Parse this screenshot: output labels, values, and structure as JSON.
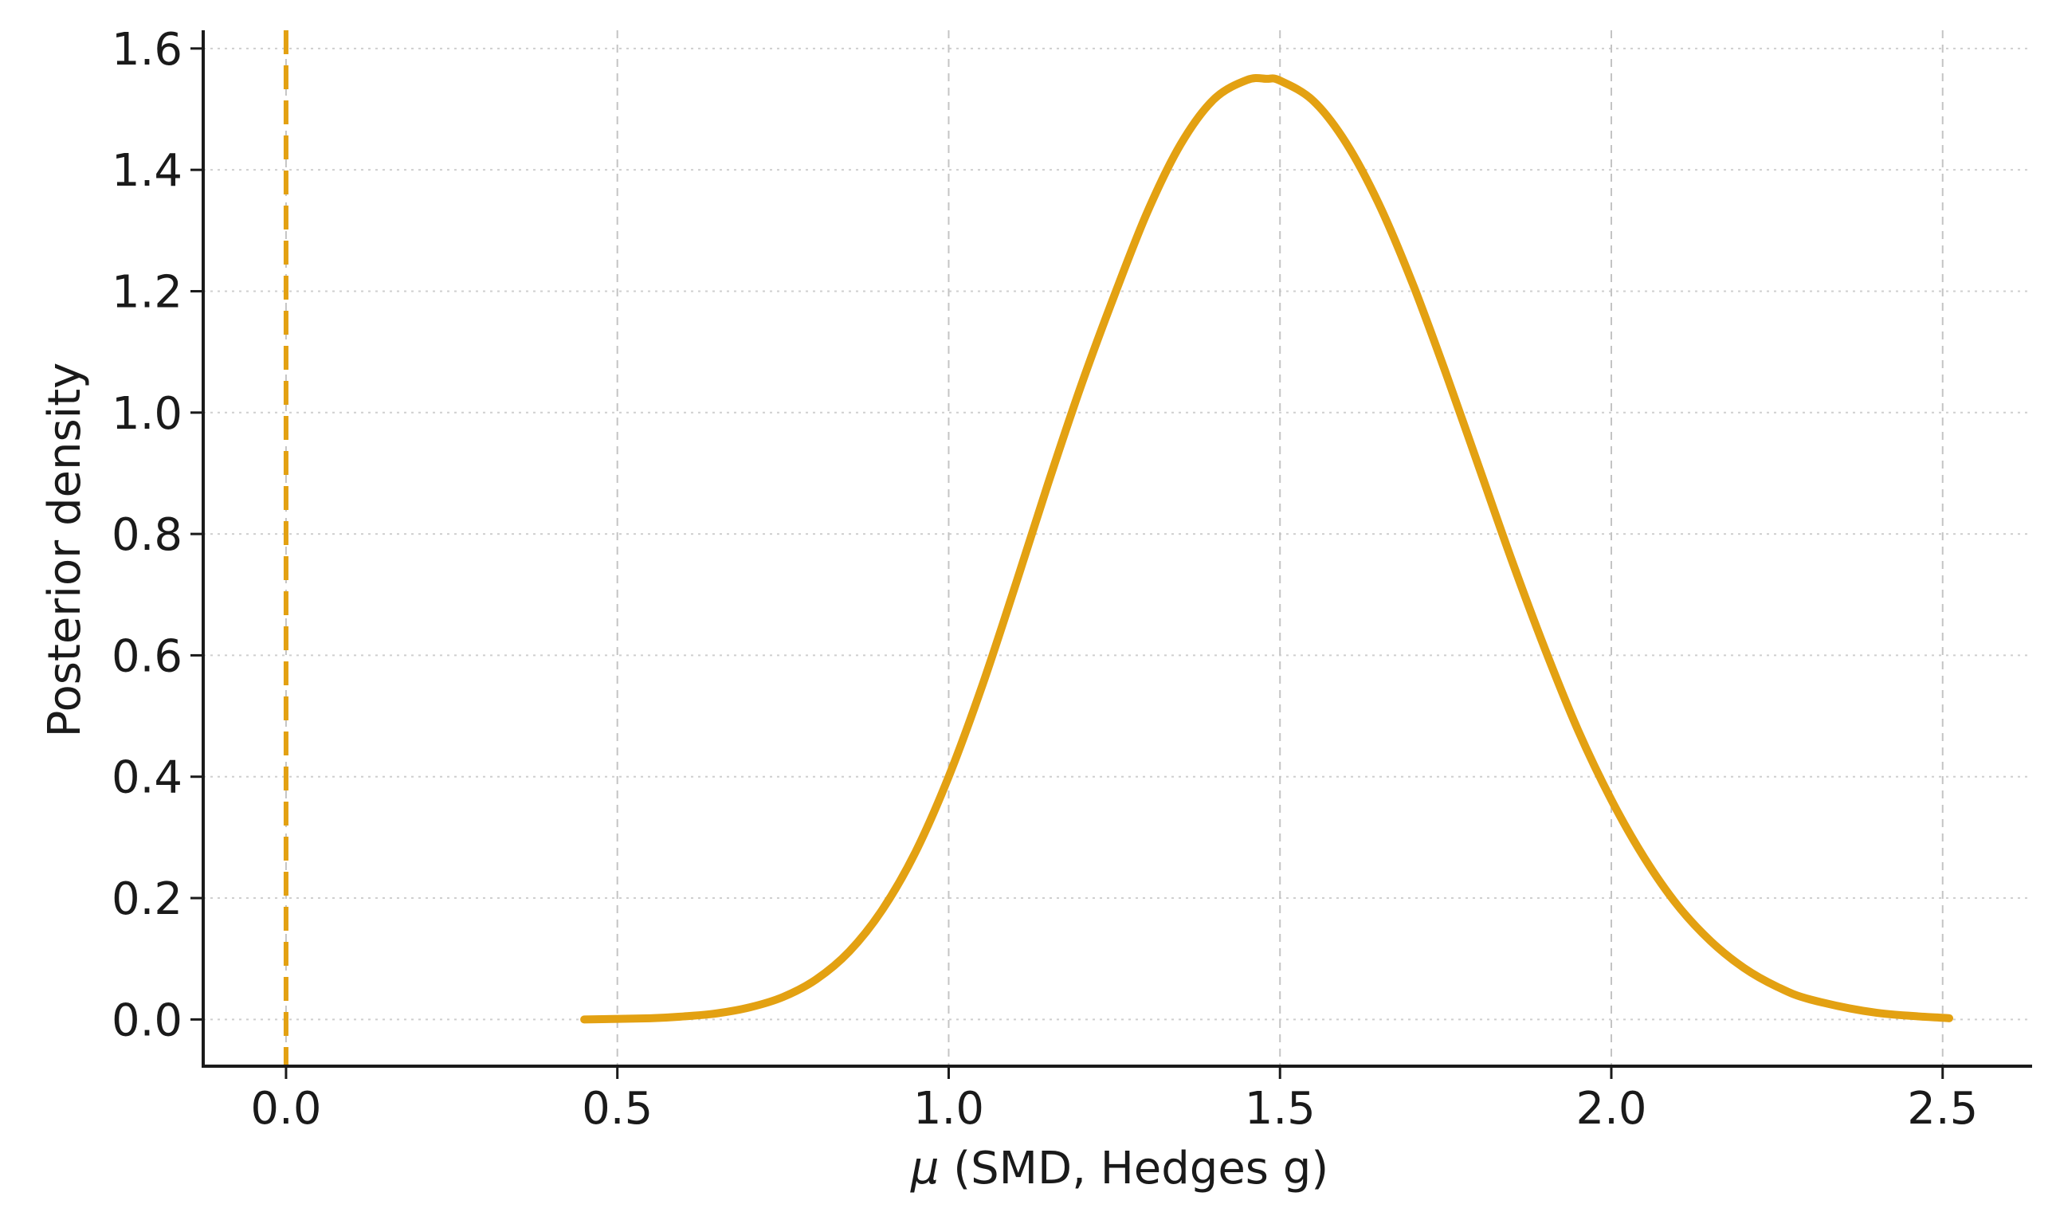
{
  "chart_data": {
    "type": "line",
    "title": "",
    "xlabel_prefix": "μ",
    "xlabel_rest": " (SMD, Hedges g)",
    "ylabel": "Posterior density",
    "xlim": [
      -0.125,
      2.635
    ],
    "ylim": [
      -0.077,
      1.63
    ],
    "x_ticks": [
      0.0,
      0.5,
      1.0,
      1.5,
      2.0,
      2.5
    ],
    "x_tick_labels": [
      "0.0",
      "0.5",
      "1.0",
      "1.5",
      "2.0",
      "2.5"
    ],
    "y_ticks": [
      0.0,
      0.2,
      0.4,
      0.6,
      0.8,
      1.0,
      1.2,
      1.4,
      1.6
    ],
    "y_tick_labels": [
      "0.0",
      "0.2",
      "0.4",
      "0.6",
      "0.8",
      "1.0",
      "1.2",
      "1.4",
      "1.6"
    ],
    "grid": true,
    "legend": "none",
    "line_color": "#E3A112",
    "reference_line": {
      "x": 0.0,
      "style": "dashed"
    },
    "series": [
      {
        "x": [
          0.45,
          0.55,
          0.6,
          0.65,
          0.7,
          0.75,
          0.8,
          0.85,
          0.9,
          0.95,
          1.0,
          1.05,
          1.1,
          1.15,
          1.2,
          1.25,
          1.3,
          1.35,
          1.4,
          1.45,
          1.48,
          1.5,
          1.55,
          1.6,
          1.65,
          1.7,
          1.75,
          1.8,
          1.85,
          1.9,
          1.95,
          2.0,
          2.05,
          2.1,
          2.15,
          2.2,
          2.25,
          2.3,
          2.4,
          2.51
        ],
        "y": [
          0.0,
          0.002,
          0.005,
          0.01,
          0.02,
          0.037,
          0.066,
          0.112,
          0.181,
          0.276,
          0.4,
          0.548,
          0.713,
          0.883,
          1.045,
          1.193,
          1.331,
          1.442,
          1.516,
          1.548,
          1.55,
          1.547,
          1.514,
          1.444,
          1.342,
          1.213,
          1.066,
          0.911,
          0.756,
          0.61,
          0.476,
          0.362,
          0.266,
          0.188,
          0.129,
          0.085,
          0.054,
          0.033,
          0.011,
          0.002
        ]
      }
    ]
  }
}
